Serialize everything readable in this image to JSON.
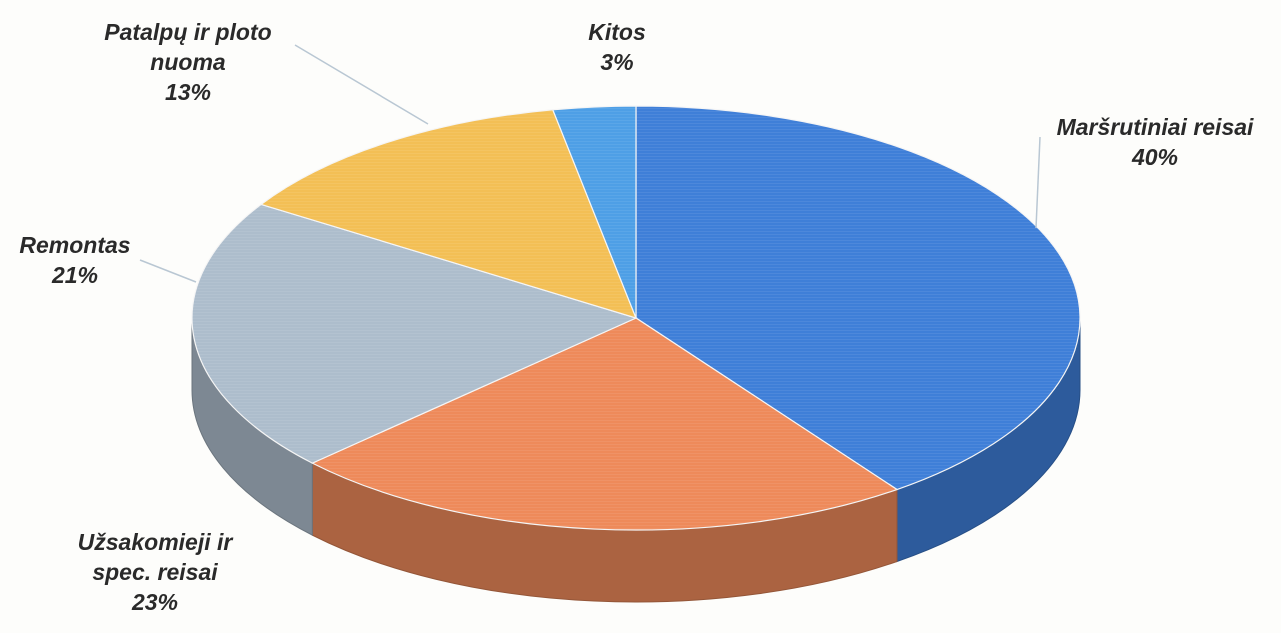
{
  "chart_data": {
    "type": "pie",
    "style": "3d",
    "title": "",
    "slices": [
      {
        "label_lines": [
          "Maršrutiniai reisai"
        ],
        "value": 40,
        "value_label": "40%",
        "color": "#3f7fd8"
      },
      {
        "label_lines": [
          "Užsakomieji ir",
          "spec. reisai"
        ],
        "value": 23,
        "value_label": "23%",
        "color": "#ee8a5a"
      },
      {
        "label_lines": [
          "Remontas"
        ],
        "value": 21,
        "value_label": "21%",
        "color": "#adbdcc"
      },
      {
        "label_lines": [
          "Patalpų ir ploto",
          "nuoma"
        ],
        "value": 13,
        "value_label": "13%",
        "color": "#f3bf55"
      },
      {
        "label_lines": [
          "Kitos"
        ],
        "value": 3,
        "value_label": "3%",
        "color": "#4e9fe6"
      }
    ]
  }
}
